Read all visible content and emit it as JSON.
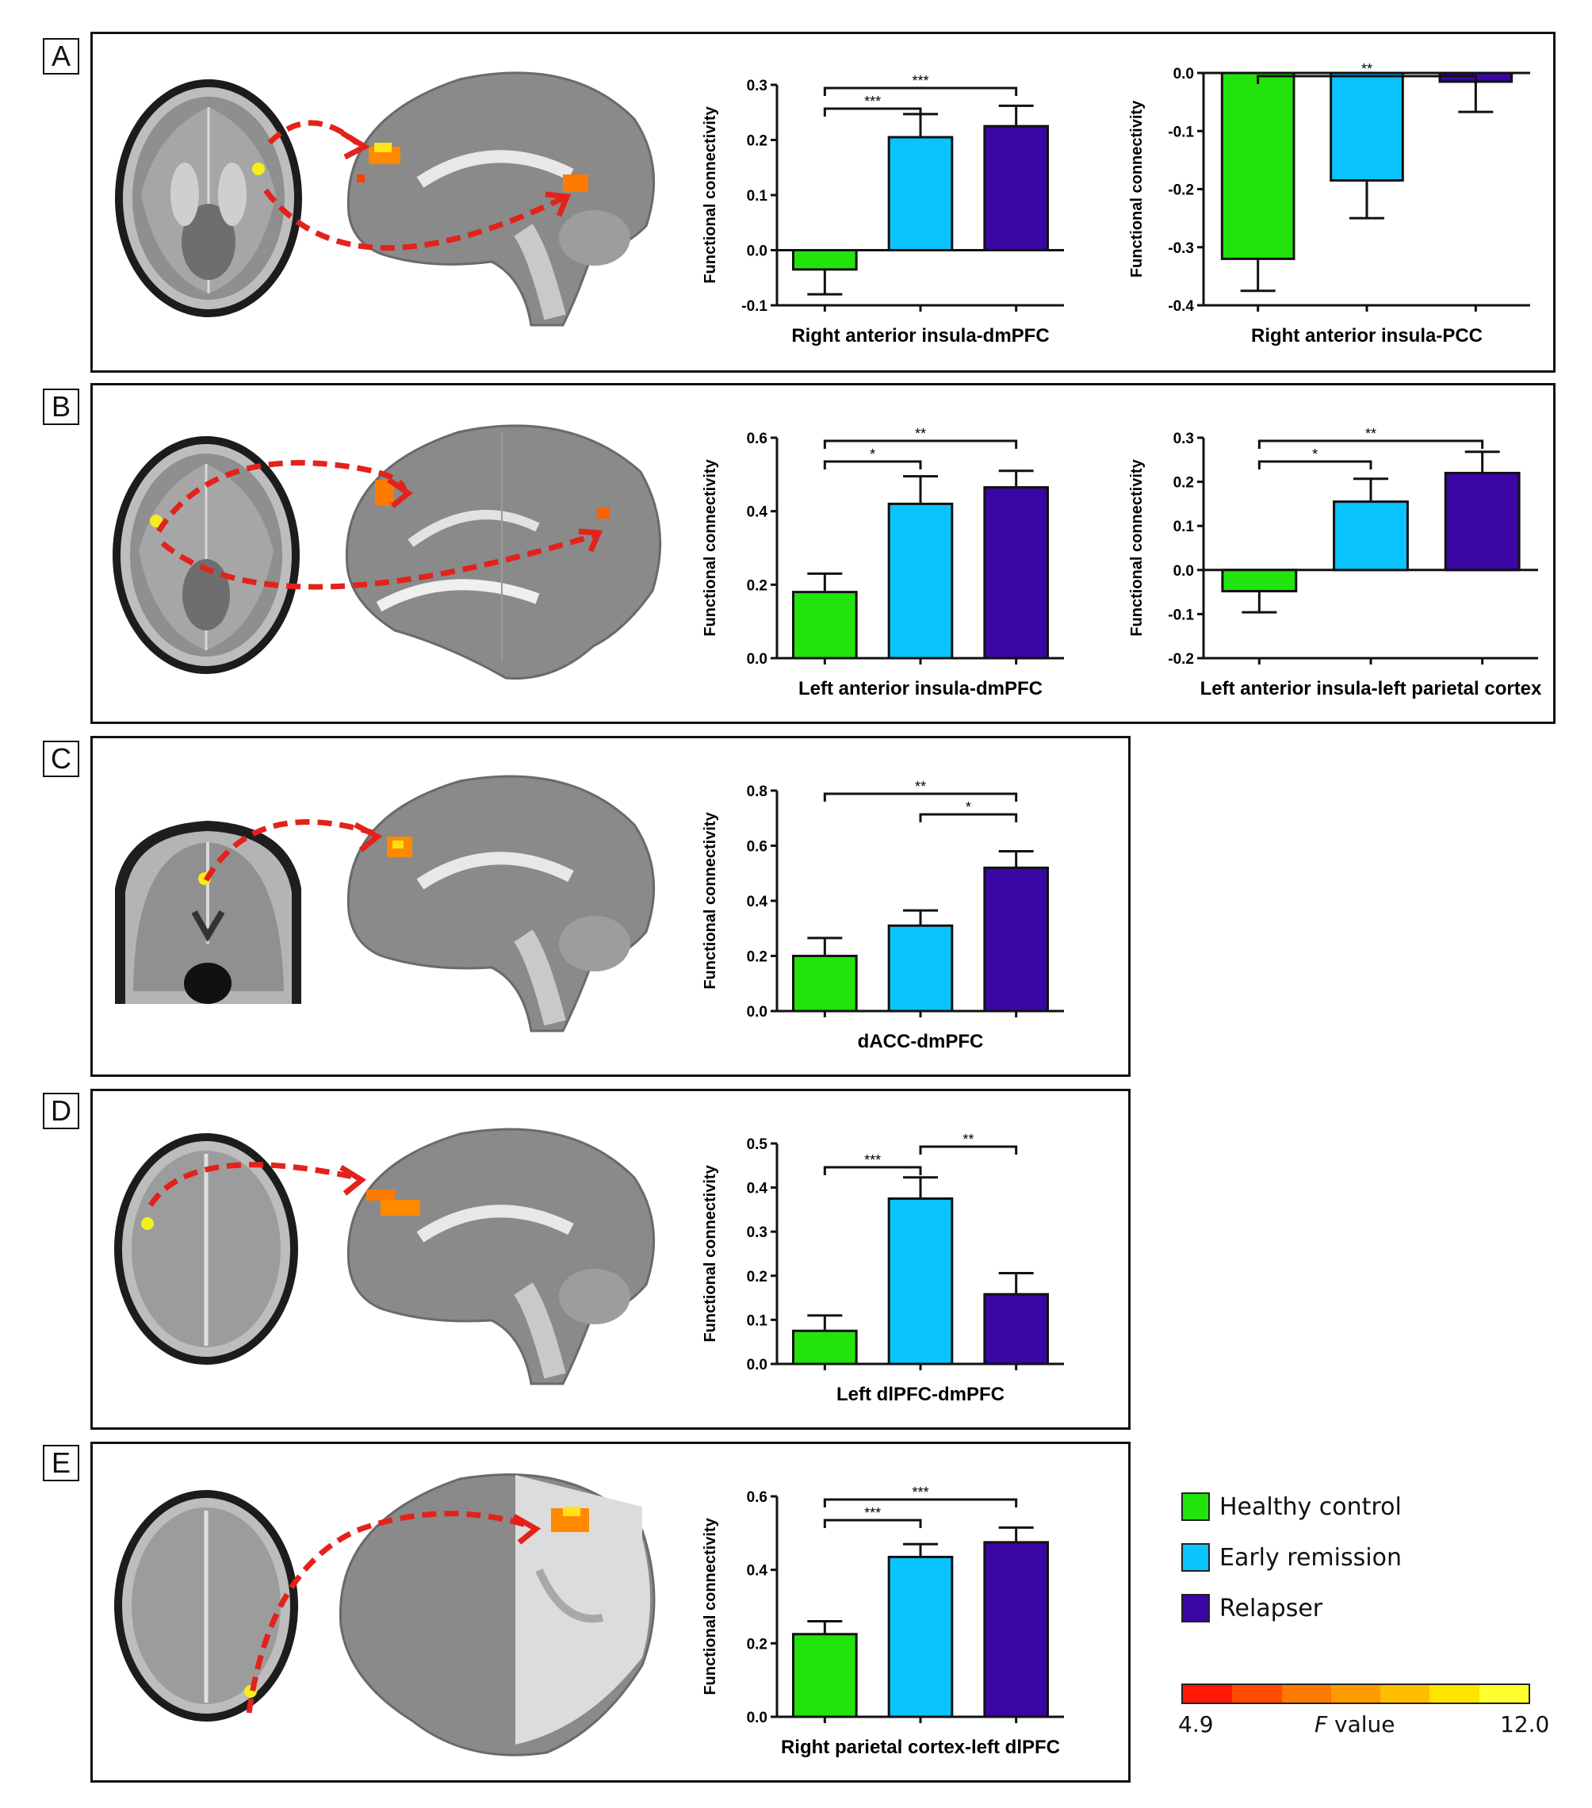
{
  "panels": [
    {
      "label": "A"
    },
    {
      "label": "B"
    },
    {
      "label": "C"
    },
    {
      "label": "D"
    },
    {
      "label": "E"
    }
  ],
  "colors": {
    "healthy_control": "#22e30c",
    "early_remission": "#0ac4ff",
    "relapser": "#3a06a4",
    "arrow": "#e3221b",
    "seed": "#f4ef1a"
  },
  "legend": {
    "items": [
      {
        "label": "Healthy control",
        "color": "#22e30c"
      },
      {
        "label": "Early remission",
        "color": "#0ac4ff"
      },
      {
        "label": "Relapser",
        "color": "#3a06a4"
      }
    ],
    "colorbar": {
      "min": "4.9",
      "max": "12.0",
      "title_italic": "F",
      "title_rest": " value",
      "colors": [
        "#ff1a0a",
        "#ff4a00",
        "#ff7a00",
        "#ff9b00",
        "#ffbf00",
        "#ffe400",
        "#ffff30"
      ]
    }
  },
  "chart_data": [
    {
      "id": "A1",
      "type": "bar",
      "title": "",
      "xlabel": "Right anterior insula-dmPFC",
      "ylabel": "Functional connectivity",
      "categories": [
        "Healthy control",
        "Early remission",
        "Relapser"
      ],
      "values": [
        -0.035,
        0.205,
        0.225
      ],
      "errors": [
        0.045,
        0.042,
        0.037
      ],
      "ylim": [
        -0.1,
        0.3
      ],
      "yticks": [
        "-0.1",
        "0.0",
        "0.1",
        "0.2",
        "0.3"
      ],
      "significance": [
        {
          "from": 0,
          "to": 1,
          "label": "***"
        },
        {
          "from": 0,
          "to": 2,
          "label": "***"
        }
      ]
    },
    {
      "id": "A2",
      "type": "bar",
      "title": "",
      "xlabel": "Right anterior insula-PCC",
      "ylabel": "Functional connectivity",
      "categories": [
        "Healthy control",
        "Early remission",
        "Relapser"
      ],
      "values": [
        -0.32,
        -0.185,
        -0.015
      ],
      "errors": [
        0.055,
        0.065,
        0.052
      ],
      "ylim": [
        -0.4,
        0.0
      ],
      "yticks": [
        "-0.4",
        "-0.3",
        "-0.2",
        "-0.1",
        "0.0"
      ],
      "significance": [
        {
          "from": 0,
          "to": 2,
          "label": "**"
        }
      ]
    },
    {
      "id": "B1",
      "type": "bar",
      "title": "",
      "xlabel": "Left anterior insula-dmPFC",
      "ylabel": "Functional connectivity",
      "categories": [
        "Healthy control",
        "Early remission",
        "Relapser"
      ],
      "values": [
        0.18,
        0.42,
        0.465
      ],
      "errors": [
        0.05,
        0.075,
        0.045
      ],
      "ylim": [
        0.0,
        0.6
      ],
      "yticks": [
        "0.0",
        "0.2",
        "0.4",
        "0.6"
      ],
      "significance": [
        {
          "from": 0,
          "to": 1,
          "label": "*"
        },
        {
          "from": 0,
          "to": 2,
          "label": "**"
        }
      ]
    },
    {
      "id": "B2",
      "type": "bar",
      "title": "",
      "xlabel": "Left anterior insula-left parietal cortex",
      "ylabel": "Functional connectivity",
      "categories": [
        "Healthy control",
        "Early remission",
        "Relapser"
      ],
      "values": [
        -0.048,
        0.155,
        0.22
      ],
      "errors": [
        0.048,
        0.052,
        0.048
      ],
      "ylim": [
        -0.2,
        0.3
      ],
      "yticks": [
        "-0.2",
        "-0.1",
        "0.0",
        "0.1",
        "0.2",
        "0.3"
      ],
      "significance": [
        {
          "from": 0,
          "to": 1,
          "label": "*"
        },
        {
          "from": 0,
          "to": 2,
          "label": "**"
        }
      ]
    },
    {
      "id": "C",
      "type": "bar",
      "title": "",
      "xlabel": "dACC-dmPFC",
      "ylabel": "Functional connectivity",
      "categories": [
        "Healthy control",
        "Early remission",
        "Relapser"
      ],
      "values": [
        0.2,
        0.31,
        0.52
      ],
      "errors": [
        0.065,
        0.055,
        0.06
      ],
      "ylim": [
        0.0,
        0.8
      ],
      "yticks": [
        "0.0",
        "0.2",
        "0.4",
        "0.6",
        "0.8"
      ],
      "significance": [
        {
          "from": 1,
          "to": 2,
          "label": "*"
        },
        {
          "from": 0,
          "to": 2,
          "label": "**"
        }
      ]
    },
    {
      "id": "D",
      "type": "bar",
      "title": "",
      "xlabel": "Left dlPFC-dmPFC",
      "ylabel": "Functional connectivity",
      "categories": [
        "Healthy control",
        "Early remission",
        "Relapser"
      ],
      "values": [
        0.075,
        0.375,
        0.158
      ],
      "errors": [
        0.035,
        0.048,
        0.048
      ],
      "ylim": [
        0.0,
        0.5
      ],
      "yticks": [
        "0.0",
        "0.1",
        "0.2",
        "0.3",
        "0.4",
        "0.5"
      ],
      "significance": [
        {
          "from": 0,
          "to": 1,
          "label": "***"
        },
        {
          "from": 1,
          "to": 2,
          "label": "**"
        }
      ]
    },
    {
      "id": "E",
      "type": "bar",
      "title": "",
      "xlabel": "Right parietal cortex-left dlPFC",
      "ylabel": "Functional connectivity",
      "categories": [
        "Healthy control",
        "Early remission",
        "Relapser"
      ],
      "values": [
        0.225,
        0.435,
        0.475
      ],
      "errors": [
        0.035,
        0.035,
        0.04
      ],
      "ylim": [
        0.0,
        0.6
      ],
      "yticks": [
        "0.0",
        "0.2",
        "0.4",
        "0.6"
      ],
      "significance": [
        {
          "from": 0,
          "to": 1,
          "label": "***"
        },
        {
          "from": 0,
          "to": 2,
          "label": "***"
        }
      ]
    }
  ]
}
